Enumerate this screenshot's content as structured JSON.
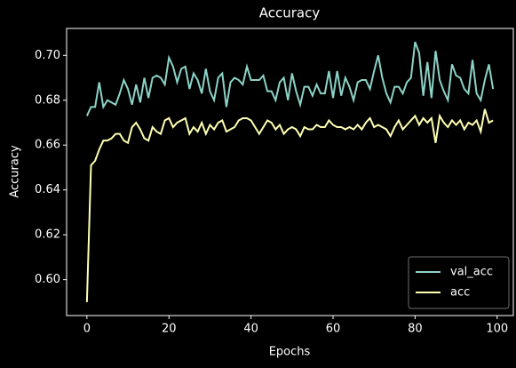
{
  "chart_data": {
    "type": "line",
    "title": "Accuracy",
    "x_label": "Epochs",
    "y_label": "Accuracy",
    "x": [
      0,
      1,
      2,
      3,
      4,
      5,
      6,
      7,
      8,
      9,
      10,
      11,
      12,
      13,
      14,
      15,
      16,
      17,
      18,
      19,
      20,
      21,
      22,
      23,
      24,
      25,
      26,
      27,
      28,
      29,
      30,
      31,
      32,
      33,
      34,
      35,
      36,
      37,
      38,
      39,
      40,
      41,
      42,
      43,
      44,
      45,
      46,
      47,
      48,
      49,
      50,
      51,
      52,
      53,
      54,
      55,
      56,
      57,
      58,
      59,
      60,
      61,
      62,
      63,
      64,
      65,
      66,
      67,
      68,
      69,
      70,
      71,
      72,
      73,
      74,
      75,
      76,
      77,
      78,
      79,
      80,
      81,
      82,
      83,
      84,
      85,
      86,
      87,
      88,
      89,
      90,
      91,
      92,
      93,
      94,
      95,
      96,
      97,
      98,
      99
    ],
    "series": [
      {
        "name": "val_acc",
        "color": "#8dd3c7",
        "values": [
          0.673,
          0.677,
          0.677,
          0.688,
          0.677,
          0.68,
          0.679,
          0.678,
          0.683,
          0.689,
          0.685,
          0.678,
          0.687,
          0.679,
          0.69,
          0.681,
          0.69,
          0.691,
          0.69,
          0.687,
          0.699,
          0.695,
          0.688,
          0.694,
          0.695,
          0.685,
          0.692,
          0.689,
          0.683,
          0.694,
          0.684,
          0.68,
          0.69,
          0.692,
          0.677,
          0.688,
          0.69,
          0.689,
          0.687,
          0.695,
          0.689,
          0.689,
          0.689,
          0.691,
          0.684,
          0.684,
          0.68,
          0.688,
          0.69,
          0.68,
          0.692,
          0.684,
          0.678,
          0.686,
          0.686,
          0.682,
          0.687,
          0.683,
          0.683,
          0.693,
          0.681,
          0.693,
          0.682,
          0.69,
          0.686,
          0.68,
          0.688,
          0.689,
          0.689,
          0.685,
          0.693,
          0.7,
          0.69,
          0.683,
          0.679,
          0.686,
          0.686,
          0.683,
          0.688,
          0.69,
          0.706,
          0.701,
          0.682,
          0.697,
          0.681,
          0.702,
          0.689,
          0.684,
          0.68,
          0.696,
          0.691,
          0.69,
          0.685,
          0.683,
          0.698,
          0.683,
          0.68,
          0.689,
          0.696,
          0.685
        ]
      },
      {
        "name": "acc",
        "color": "#feffb3",
        "values": [
          0.59,
          0.651,
          0.653,
          0.658,
          0.662,
          0.662,
          0.663,
          0.665,
          0.665,
          0.662,
          0.661,
          0.668,
          0.67,
          0.667,
          0.663,
          0.662,
          0.668,
          0.666,
          0.665,
          0.671,
          0.672,
          0.668,
          0.67,
          0.671,
          0.672,
          0.665,
          0.668,
          0.666,
          0.67,
          0.665,
          0.669,
          0.667,
          0.67,
          0.671,
          0.666,
          0.667,
          0.668,
          0.671,
          0.672,
          0.672,
          0.671,
          0.668,
          0.665,
          0.668,
          0.671,
          0.67,
          0.667,
          0.669,
          0.665,
          0.667,
          0.668,
          0.667,
          0.664,
          0.668,
          0.667,
          0.667,
          0.669,
          0.668,
          0.668,
          0.671,
          0.669,
          0.668,
          0.668,
          0.667,
          0.668,
          0.667,
          0.669,
          0.667,
          0.67,
          0.672,
          0.668,
          0.669,
          0.668,
          0.667,
          0.664,
          0.668,
          0.671,
          0.667,
          0.669,
          0.671,
          0.673,
          0.669,
          0.672,
          0.67,
          0.672,
          0.661,
          0.673,
          0.67,
          0.668,
          0.671,
          0.669,
          0.671,
          0.667,
          0.67,
          0.669,
          0.671,
          0.666,
          0.676,
          0.67,
          0.671
        ]
      }
    ],
    "xlim": [
      -4.95,
      103.95
    ],
    "ylim": [
      0.584,
      0.712
    ],
    "xticks": [
      0,
      20,
      40,
      60,
      80,
      100
    ],
    "yticks": [
      {
        "value": 0.6,
        "label": "0.60"
      },
      {
        "value": 0.62,
        "label": "0.62"
      },
      {
        "value": 0.64,
        "label": "0.64"
      },
      {
        "value": 0.66,
        "label": "0.66"
      },
      {
        "value": 0.68,
        "label": "0.68"
      },
      {
        "value": 0.7,
        "label": "0.70"
      }
    ],
    "legend": "lower right",
    "grid": false
  }
}
